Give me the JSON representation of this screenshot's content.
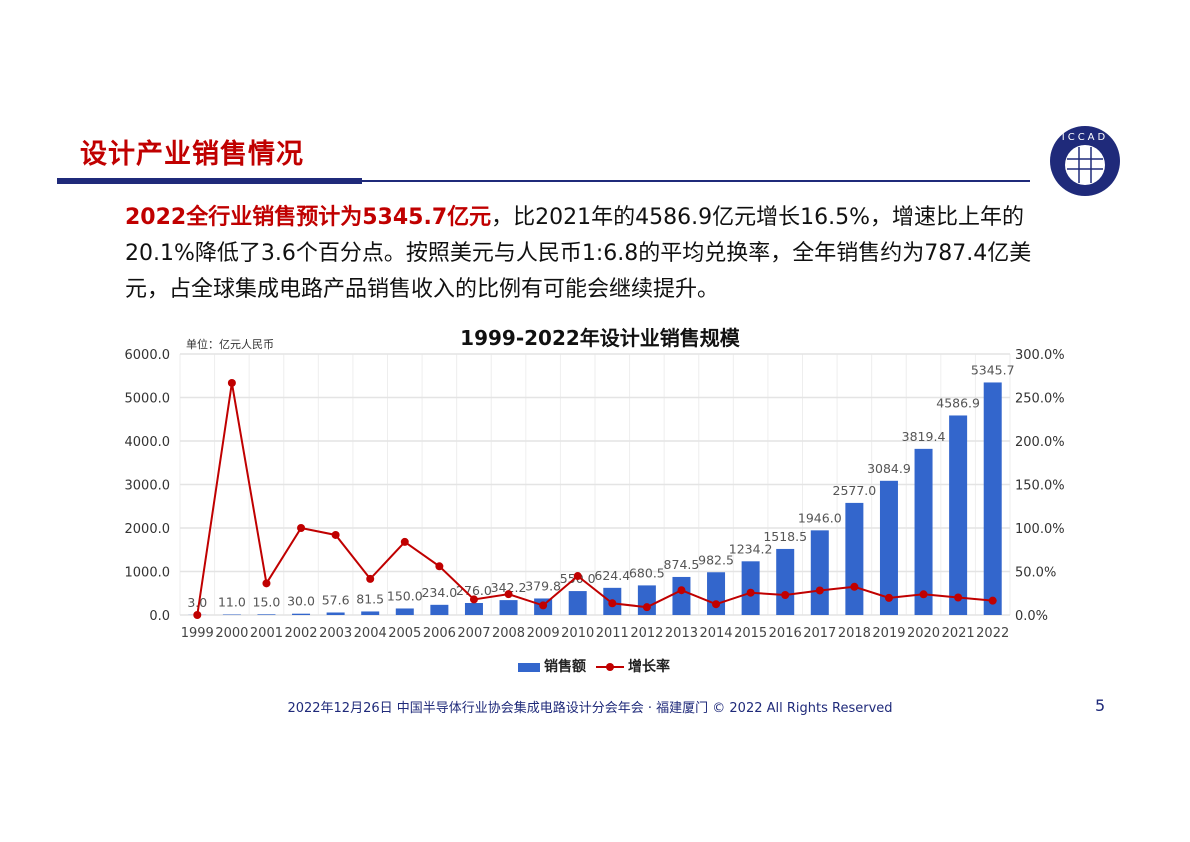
{
  "slide": {
    "title": "设计产业销售情况",
    "body_highlight": "2022全行业销售预计为5345.7亿元",
    "body_rest": "，比2021年的4586.9亿元增长16.5%，增速比上年的20.1%降低了3.6个百分点。按照美元与人民币1:6.8的平均兑换率，全年销售约为787.4亿美元，占全球集成电路产品销售收入的比例有可能会继续提升。",
    "logo_text": "ICCAD",
    "footer": "2022年12月26日 中国半导体行业协会集成电路设计分会年会 · 福建厦门 © 2022 All Rights Reserved",
    "page_number": "5",
    "colors": {
      "title": "#c00000",
      "rule": "#1f2a7a",
      "bar": "#3366cc",
      "line": "#c00000"
    }
  },
  "chart_data": {
    "type": "bar+line",
    "title": "1999-2022年设计业销售规模",
    "unit_label": "单位：亿元人民币",
    "categories": [
      "1999",
      "2000",
      "2001",
      "2002",
      "2003",
      "2004",
      "2005",
      "2006",
      "2007",
      "2008",
      "2009",
      "2010",
      "2011",
      "2012",
      "2013",
      "2014",
      "2015",
      "2016",
      "2017",
      "2018",
      "2019",
      "2020",
      "2021",
      "2022"
    ],
    "series": [
      {
        "name": "销售额",
        "type": "bar",
        "axis": "left",
        "values": [
          3.0,
          11.0,
          15.0,
          30.0,
          57.6,
          81.5,
          150.0,
          234.0,
          276.0,
          342.2,
          379.8,
          550.0,
          624.4,
          680.5,
          874.5,
          982.5,
          1234.2,
          1518.5,
          1946.0,
          2577.0,
          3084.9,
          3819.4,
          4586.9,
          5345.7
        ]
      },
      {
        "name": "增长率",
        "type": "line",
        "axis": "right",
        "values": [
          0,
          266.7,
          36.4,
          100.0,
          92.0,
          41.5,
          84.0,
          56.0,
          17.9,
          24.0,
          11.0,
          44.8,
          13.5,
          9.0,
          28.5,
          12.4,
          25.6,
          23.0,
          28.2,
          32.4,
          19.7,
          23.8,
          20.1,
          16.5
        ]
      }
    ],
    "y_left": {
      "range": [
        0,
        6000
      ],
      "ticks": [
        "0.0",
        "1000.0",
        "2000.0",
        "3000.0",
        "4000.0",
        "5000.0",
        "6000.0"
      ]
    },
    "y_right": {
      "range": [
        0,
        300
      ],
      "ticks": [
        "0.0%",
        "50.0%",
        "100.0%",
        "150.0%",
        "200.0%",
        "250.0%",
        "300.0%"
      ]
    },
    "grid": true,
    "legend": "bottom"
  }
}
